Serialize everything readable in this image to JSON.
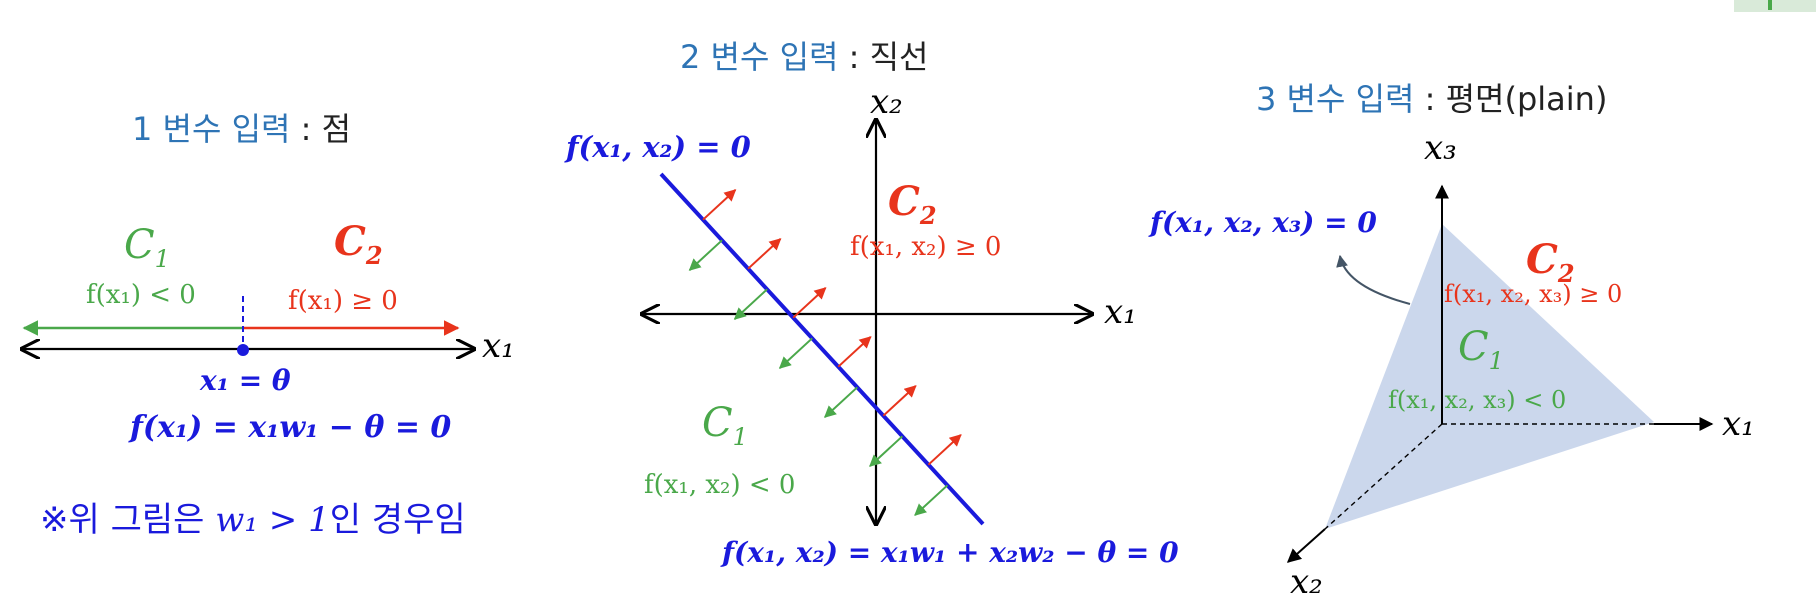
{
  "corner_tab_color": "#d9ead9",
  "colors": {
    "title_blue": "#2e74b5",
    "line_navy": "#1a1adc",
    "class2_red": "#e8341c",
    "class1_green": "#4aa84a",
    "plane_fill": "#c5d3ea"
  },
  "panel1": {
    "title_main": "1 변수 입력",
    "title_sep": " : ",
    "title_tail": "점",
    "c1_label": "C",
    "c1_sub": "1",
    "c1_ineq": "f(x₁) < 0",
    "c2_label": "C",
    "c2_sub": "2",
    "c2_ineq": "f(x₁) ≥ 0",
    "axis_label": "x₁",
    "threshold": "x₁ = θ",
    "equation": "f(x₁) = x₁w₁ − θ = 0",
    "note_prefix": "※위 그림은 ",
    "note_math": "w₁ > 1",
    "note_suffix": "인 경우임"
  },
  "panel2": {
    "title_main": "2 변수 입력",
    "title_sep": " : ",
    "title_tail": "직선",
    "y_axis_label": "x₂",
    "x_axis_label": "x₁",
    "line_label": "f(x₁, x₂) = 0",
    "c2_label": "C",
    "c2_sub": "2",
    "c2_ineq": "f(x₁, x₂) ≥ 0",
    "c1_label": "C",
    "c1_sub": "1",
    "c1_ineq": "f(x₁, x₂) < 0",
    "equation": "f(x₁, x₂) = x₁w₁ + x₂w₂ − θ = 0"
  },
  "panel3": {
    "title_main": "3 변수 입력",
    "title_sep": " : ",
    "title_tail": "평면(plain)",
    "z_axis_label": "x₃",
    "x_axis_label": "x₁",
    "y_axis_label": "x₂",
    "plane_label": "f(x₁, x₂, x₃) = 0",
    "c2_label": "C",
    "c2_sub": "2",
    "c2_ineq": "f(x₁, x₂, x₃) ≥ 0",
    "c1_label": "C",
    "c1_sub": "1",
    "c1_ineq": "f(x₁, x₂, x₃) < 0"
  }
}
